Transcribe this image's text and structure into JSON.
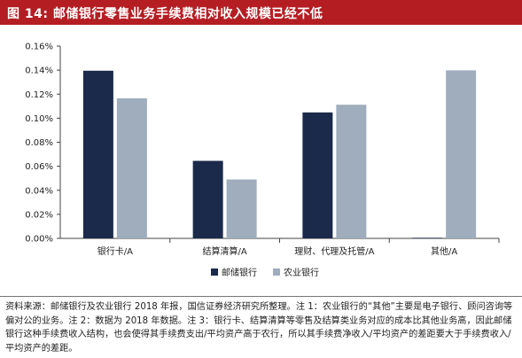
{
  "title": "图 14:  邮储银行零售业务手续费相对收入规模已经不低",
  "chart_data": {
    "type": "bar",
    "categories": [
      "银行卡/A",
      "结算清算/A",
      "理财、代理及托管/A",
      "其他/A"
    ],
    "series": [
      {
        "name": "邮储银行",
        "color": "#1b2a4a",
        "values": [
          0.1395,
          0.0645,
          0.1048,
          0.0005
        ]
      },
      {
        "name": "农业银行",
        "color": "#9fadbd",
        "values": [
          0.1165,
          0.049,
          0.1112,
          0.1398
        ]
      }
    ],
    "y_ticks": [
      "0.00%",
      "0.02%",
      "0.04%",
      "0.06%",
      "0.08%",
      "0.10%",
      "0.12%",
      "0.14%",
      "0.16%"
    ],
    "ylim": [
      0,
      0.16
    ],
    "unit": "%",
    "legend_position": "bottom",
    "grid": false
  },
  "note": "资料来源：邮储银行及农业银行 2018 年报，国信证券经济研究所整理。注 1：农业银行的“其他”主要是电子银行、顾问咨询等偏对公的业务。注 2：数据为 2018 年数据。注 3：银行卡、结算清算等零售及结算类业务对应的成本比其他业务高，因此邮储银行这种手续费收入结构，也会使得其手续费支出/平均资产高于农行，所以其手续费净收入/平均资产的差距要大于手续费收入/平均资产的差距。"
}
